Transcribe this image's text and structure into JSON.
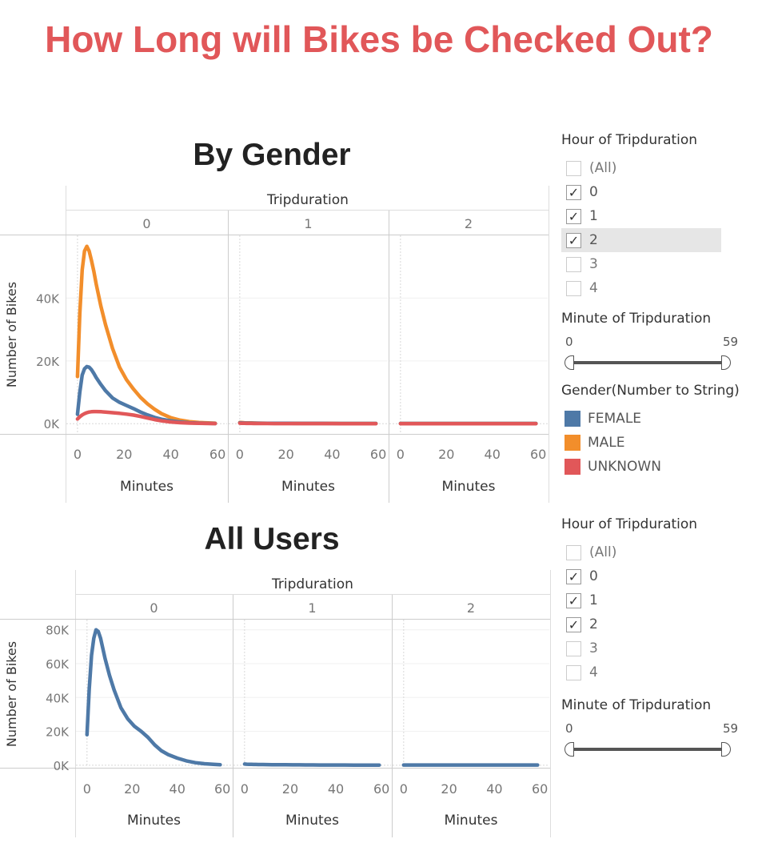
{
  "page_title": "How Long will Bikes be Checked Out?",
  "chart_data": [
    {
      "type": "line",
      "title": "By Gender",
      "column_header": "Tripduration",
      "panels": [
        "0",
        "1",
        "2"
      ],
      "xlabel": "Minutes",
      "ylabel": "Number of Bikes",
      "x_ticks": [
        0,
        20,
        40,
        60
      ],
      "y_ticks": [
        "0K",
        "20K",
        "40K"
      ],
      "y_tick_values": [
        0,
        20000,
        40000
      ],
      "ylim": [
        -3000,
        60000
      ],
      "xlim": [
        -1,
        61
      ],
      "grid": true,
      "legend_position": "right",
      "x": [
        0,
        1,
        2,
        3,
        4,
        5,
        6,
        7,
        8,
        10,
        12,
        15,
        18,
        21,
        24,
        27,
        30,
        33,
        36,
        40,
        44,
        48,
        52,
        56,
        59
      ],
      "series": [
        {
          "name": "FEMALE",
          "color": "#4e79a7",
          "panel_values": [
            [
              3000,
              10000,
              15500,
              17500,
              18200,
              18000,
              17200,
              16000,
              14700,
              12500,
              10500,
              8200,
              6800,
              5800,
              4800,
              3700,
              2800,
              2000,
              1400,
              900,
              550,
              300,
              180,
              100,
              60
            ],
            [
              300,
              250,
              220,
              200,
              190,
              180,
              170,
              160,
              150,
              140,
              130,
              120,
              110,
              100,
              95,
              90,
              85,
              80,
              75,
              70,
              65,
              60,
              55,
              50,
              50
            ],
            [
              50,
              50,
              50,
              50,
              50,
              50,
              50,
              50,
              50,
              50,
              50,
              50,
              50,
              50,
              50,
              50,
              50,
              50,
              50,
              50,
              50,
              50,
              50,
              50,
              50
            ]
          ]
        },
        {
          "name": "MALE",
          "color": "#f28e2b",
          "panel_values": [
            [
              15000,
              35000,
              49000,
              55000,
              56500,
              55000,
              52000,
              48500,
              44500,
              37500,
              31500,
              24000,
              18000,
              14000,
              11000,
              8400,
              6300,
              4600,
              3200,
              1900,
              1100,
              650,
              380,
              230,
              150
            ],
            [
              400,
              350,
              300,
              270,
              250,
              230,
              210,
              190,
              170,
              150,
              140,
              130,
              120,
              110,
              100,
              95,
              90,
              85,
              80,
              75,
              70,
              65,
              60,
              55,
              50
            ],
            [
              60,
              60,
              60,
              60,
              60,
              60,
              60,
              60,
              60,
              60,
              60,
              60,
              60,
              60,
              60,
              60,
              60,
              60,
              60,
              60,
              60,
              60,
              60,
              60,
              60
            ]
          ]
        },
        {
          "name": "UNKNOWN",
          "color": "#e15759",
          "panel_values": [
            [
              1500,
              2200,
              2800,
              3200,
              3500,
              3700,
              3800,
              3850,
              3850,
              3800,
              3700,
              3500,
              3300,
              3050,
              2750,
              2300,
              1800,
              1300,
              900,
              550,
              320,
              180,
              100,
              60,
              40
            ],
            [
              150,
              120,
              100,
              90,
              80,
              75,
              70,
              65,
              60,
              55,
              50,
              45,
              40,
              38,
              35,
              32,
              30,
              28,
              26,
              24,
              22,
              20,
              18,
              16,
              15
            ],
            [
              20,
              20,
              20,
              20,
              20,
              20,
              20,
              20,
              20,
              20,
              20,
              20,
              20,
              20,
              20,
              20,
              20,
              20,
              20,
              20,
              20,
              20,
              20,
              20,
              20
            ]
          ]
        }
      ]
    },
    {
      "type": "line",
      "title": "All Users",
      "column_header": "Tripduration",
      "panels": [
        "0",
        "1",
        "2"
      ],
      "xlabel": "Minutes",
      "ylabel": "Number of Bikes",
      "x_ticks": [
        0,
        20,
        40,
        60
      ],
      "y_ticks": [
        "0K",
        "20K",
        "40K",
        "60K",
        "80K"
      ],
      "y_tick_values": [
        0,
        20000,
        40000,
        60000,
        80000
      ],
      "ylim": [
        -1000,
        86000
      ],
      "xlim": [
        -1,
        61
      ],
      "grid": true,
      "x": [
        0,
        1,
        2,
        3,
        4,
        5,
        6,
        7,
        8,
        10,
        12,
        15,
        18,
        21,
        24,
        27,
        30,
        33,
        36,
        40,
        44,
        48,
        52,
        56,
        59
      ],
      "series": [
        {
          "name": "",
          "color": "#4e79a7",
          "panel_values": [
            [
              18000,
              45000,
              65000,
              75000,
              80000,
              79000,
              75000,
              69000,
              63000,
              53000,
              44500,
              34000,
              27500,
              23000,
              20000,
              16500,
              12000,
              8500,
              6300,
              4200,
              2600,
              1500,
              900,
              500,
              300
            ],
            [
              700,
              600,
              550,
              500,
              480,
              460,
              440,
              420,
              400,
              370,
              340,
              300,
              270,
              240,
              210,
              190,
              170,
              150,
              140,
              130,
              120,
              110,
              100,
              95,
              90
            ],
            [
              150,
              150,
              150,
              150,
              150,
              150,
              150,
              150,
              150,
              150,
              150,
              150,
              150,
              150,
              150,
              150,
              150,
              150,
              150,
              150,
              150,
              150,
              150,
              150,
              150
            ]
          ]
        }
      ]
    }
  ],
  "filter_hour_1": {
    "title": "Hour of Tripduration",
    "items": [
      {
        "label": "(All)",
        "checked": false
      },
      {
        "label": "0",
        "checked": true
      },
      {
        "label": "1",
        "checked": true
      },
      {
        "label": "2",
        "checked": true
      },
      {
        "label": "3",
        "checked": false
      },
      {
        "label": "4",
        "checked": false
      }
    ]
  },
  "filter_minute_1": {
    "title": "Minute of Tripduration",
    "min": "0",
    "max": "59"
  },
  "legend_gender": {
    "title": "Gender(Number to String)",
    "items": [
      {
        "label": "FEMALE",
        "color": "#4e79a7"
      },
      {
        "label": "MALE",
        "color": "#f28e2b"
      },
      {
        "label": "UNKNOWN",
        "color": "#e15759"
      }
    ]
  },
  "filter_hour_2": {
    "title": "Hour of Tripduration",
    "items": [
      {
        "label": "(All)",
        "checked": false
      },
      {
        "label": "0",
        "checked": true
      },
      {
        "label": "1",
        "checked": true
      },
      {
        "label": "2",
        "checked": true
      },
      {
        "label": "3",
        "checked": false
      },
      {
        "label": "4",
        "checked": false
      }
    ]
  },
  "filter_minute_2": {
    "title": "Minute of Tripduration",
    "min": "0",
    "max": "59"
  }
}
